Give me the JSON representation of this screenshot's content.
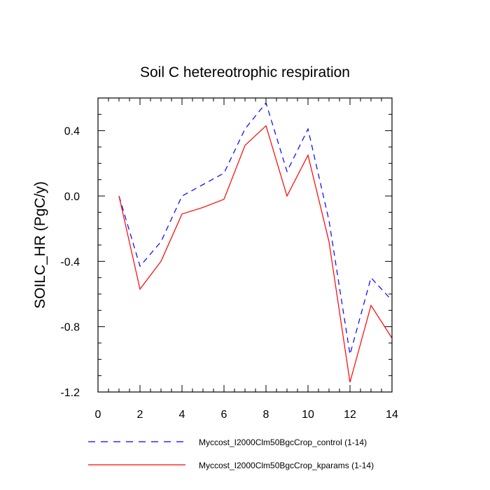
{
  "chart_data": {
    "type": "line",
    "title": "Soil C hetereotrophic respiration",
    "ylabel": "SOILC_HR  (PgC/y)",
    "xlabel": "",
    "xlim": [
      0,
      14
    ],
    "ylim": [
      -1.2,
      0.6
    ],
    "xticks": [
      0,
      2,
      4,
      6,
      8,
      10,
      12,
      14
    ],
    "xtick_labels": [
      "0",
      "2",
      "4",
      "6",
      "8",
      "10",
      "12",
      "14"
    ],
    "yticks": [
      -1.2,
      -0.8,
      -0.4,
      0.0,
      0.4
    ],
    "ytick_labels": [
      "-1.2",
      "-0.8",
      "-0.4",
      "0.0",
      "0.4"
    ],
    "x_minor_step": 0.5,
    "y_minor_step": 0.1,
    "grid": false,
    "legend_position": "bottom",
    "x": [
      1,
      2,
      3,
      4,
      5,
      6,
      7,
      8,
      9,
      10,
      11,
      12,
      13,
      14
    ],
    "series": [
      {
        "name": "Myccost_I2000Clm50BgcCrop_control (1-14)",
        "color": "#0000ff",
        "dash": "dashed",
        "values": [
          0.0,
          -0.43,
          -0.28,
          0.0,
          0.07,
          0.14,
          0.41,
          0.57,
          0.15,
          0.41,
          -0.15,
          -0.97,
          -0.5,
          -0.64
        ]
      },
      {
        "name": "Myccost_I2000Clm50BgcCrop_kparams (1-14)",
        "color": "#ff0000",
        "dash": "solid",
        "values": [
          0.0,
          -0.57,
          -0.4,
          -0.11,
          -0.07,
          -0.02,
          0.31,
          0.43,
          0.0,
          0.25,
          -0.28,
          -1.14,
          -0.67,
          -0.87
        ]
      }
    ]
  }
}
